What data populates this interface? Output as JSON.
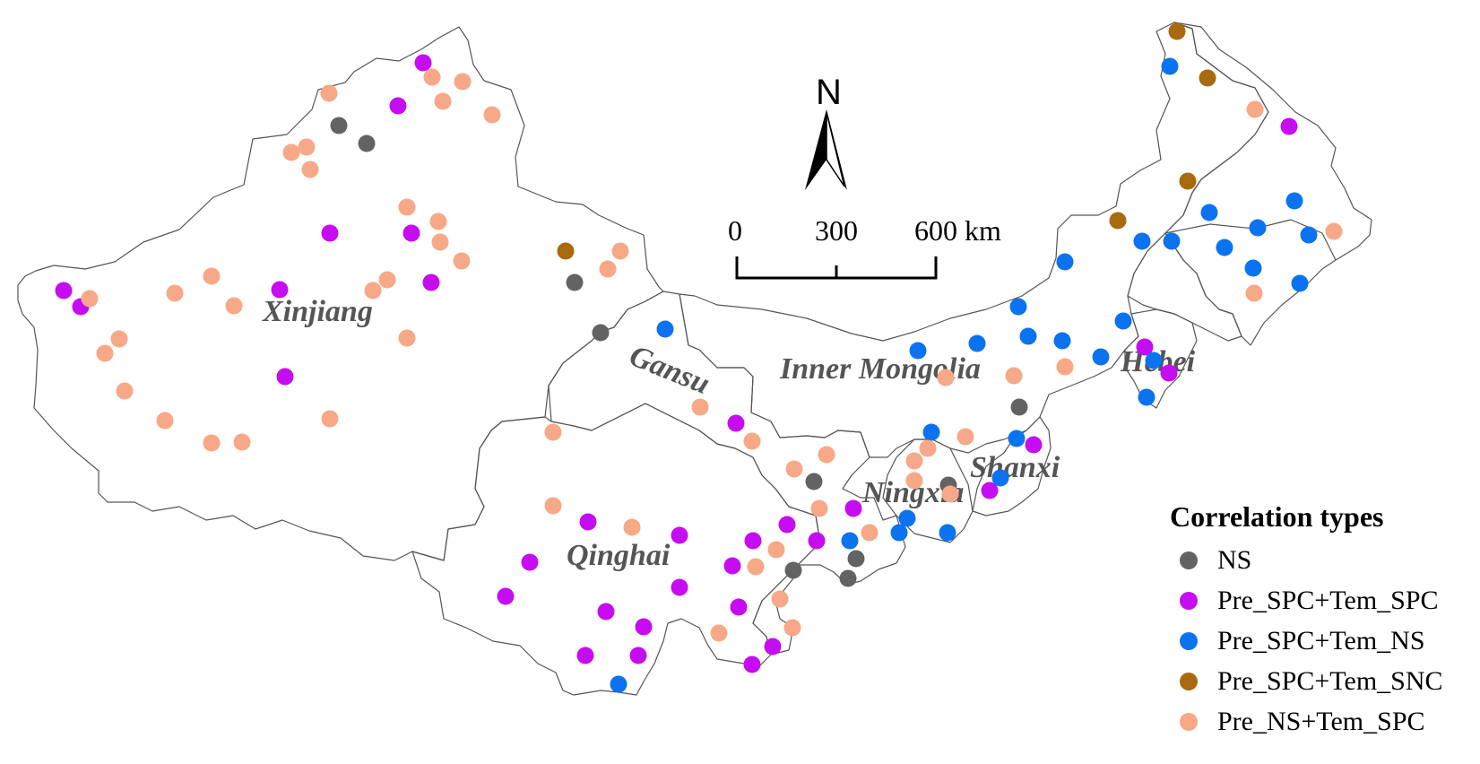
{
  "map": {
    "regions": [
      {
        "key": "xinjiang",
        "label": "Xinjiang"
      },
      {
        "key": "gansu",
        "label": "Gansu"
      },
      {
        "key": "qinghai",
        "label": "Qinghai"
      },
      {
        "key": "inner_mongolia",
        "label": "Inner Mongolia"
      },
      {
        "key": "hebei",
        "label": "Hebei"
      },
      {
        "key": "ningxia",
        "label": "Ningxia"
      },
      {
        "key": "shanxi",
        "label": "Shanxi"
      }
    ],
    "north_arrow": {
      "letter": "N"
    },
    "scale_bar": {
      "ticks": [
        "0",
        "300",
        "600 km"
      ]
    }
  },
  "legend": {
    "title": "Correlation types",
    "items": [
      {
        "key": "NS",
        "label": "NS",
        "color": "#636363"
      },
      {
        "key": "PS_TS",
        "label": "Pre_SPC+Tem_SPC",
        "color": "#c60cf0"
      },
      {
        "key": "PS_TN",
        "label": "Pre_SPC+Tem_NS",
        "color": "#0b73f0"
      },
      {
        "key": "PS_TSN",
        "label": "Pre_SPC+Tem_SNC",
        "color": "#a86a0e"
      },
      {
        "key": "PN_TS",
        "label": "Pre_NS+Tem_SPC",
        "color": "#f7a887"
      }
    ]
  }
}
